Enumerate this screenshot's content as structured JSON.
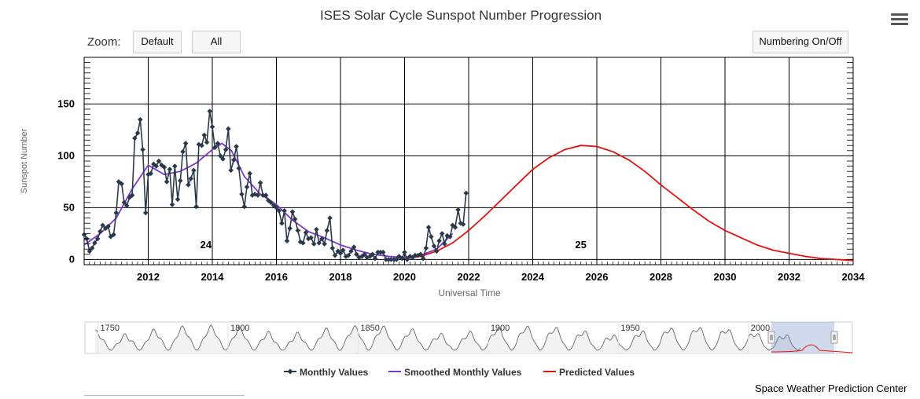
{
  "header": {
    "title": "ISES Solar Cycle Sunspot Number Progression",
    "zoom_label": "Zoom:",
    "zoom_default": "Default",
    "zoom_all": "All",
    "numbering_toggle": "Numbering On/Off",
    "menu_icon": "hamburger-menu-icon"
  },
  "footer": {
    "credit": "Space Weather Prediction Center"
  },
  "chart_data": {
    "type": "line",
    "ylabel": "Sunspot Number",
    "xlabel": "Universal Time",
    "xlim": [
      2010.0,
      2034.0
    ],
    "ylim": [
      -5,
      195
    ],
    "x_ticks": [
      "2012",
      "2014",
      "2016",
      "2018",
      "2020",
      "2022",
      "2024",
      "2026",
      "2028",
      "2030",
      "2032",
      "2034"
    ],
    "y_ticks": [
      "0",
      "50",
      "100",
      "150"
    ],
    "grid": true,
    "cycle_labels": [
      {
        "text": "24",
        "x": 2013.8,
        "y": 11
      },
      {
        "text": "25",
        "x": 2025.5,
        "y": 11
      }
    ],
    "legend": [
      "Monthly Values",
      "Smoothed Monthly Values",
      "Predicted Values"
    ],
    "legend_position": "bottom-center",
    "colors": {
      "monthly": "#2b3a4a",
      "smoothed": "#7b35d6",
      "predicted": "#e3130b"
    },
    "series": [
      {
        "name": "Monthly Values",
        "x": [
          2010.0,
          2010.08,
          2010.17,
          2010.25,
          2010.33,
          2010.42,
          2010.5,
          2010.58,
          2010.67,
          2010.75,
          2010.83,
          2010.92,
          2011.0,
          2011.08,
          2011.17,
          2011.25,
          2011.33,
          2011.42,
          2011.5,
          2011.58,
          2011.67,
          2011.75,
          2011.83,
          2011.92,
          2012.0,
          2012.08,
          2012.17,
          2012.25,
          2012.33,
          2012.42,
          2012.5,
          2012.58,
          2012.67,
          2012.75,
          2012.83,
          2012.92,
          2013.0,
          2013.08,
          2013.17,
          2013.25,
          2013.33,
          2013.42,
          2013.5,
          2013.58,
          2013.67,
          2013.75,
          2013.83,
          2013.92,
          2014.0,
          2014.08,
          2014.17,
          2014.25,
          2014.33,
          2014.42,
          2014.5,
          2014.58,
          2014.67,
          2014.75,
          2014.83,
          2014.92,
          2015.0,
          2015.08,
          2015.17,
          2015.25,
          2015.33,
          2015.42,
          2015.5,
          2015.58,
          2015.67,
          2015.75,
          2015.83,
          2015.92,
          2016.0,
          2016.08,
          2016.17,
          2016.25,
          2016.33,
          2016.42,
          2016.5,
          2016.58,
          2016.67,
          2016.75,
          2016.83,
          2016.92,
          2017.0,
          2017.08,
          2017.17,
          2017.25,
          2017.33,
          2017.42,
          2017.5,
          2017.58,
          2017.67,
          2017.75,
          2017.83,
          2017.92,
          2018.0,
          2018.08,
          2018.17,
          2018.25,
          2018.33,
          2018.42,
          2018.5,
          2018.58,
          2018.67,
          2018.75,
          2018.83,
          2018.92,
          2019.0,
          2019.08,
          2019.17,
          2019.25,
          2019.33,
          2019.42,
          2019.5,
          2019.58,
          2019.67,
          2019.75,
          2019.83,
          2019.92,
          2020.0,
          2020.08,
          2020.17,
          2020.25,
          2020.33,
          2020.42,
          2020.5,
          2020.58,
          2020.67,
          2020.75,
          2020.83,
          2020.92,
          2021.0,
          2021.08,
          2021.17,
          2021.25,
          2021.33,
          2021.42,
          2021.5,
          2021.58,
          2021.67,
          2021.75,
          2021.83,
          2021.92
        ],
        "values": [
          24,
          20,
          8,
          11,
          16,
          20,
          27,
          33,
          30,
          32,
          22,
          24,
          45,
          75,
          73,
          55,
          52,
          60,
          62,
          117,
          122,
          135,
          106,
          45,
          82,
          83,
          92,
          90,
          95,
          91,
          89,
          75,
          87,
          53,
          90,
          58,
          76,
          104,
          112,
          72,
          78,
          86,
          51,
          111,
          110,
          120,
          113,
          143,
          128,
          108,
          112,
          100,
          97,
          106,
          126,
          86,
          96,
          109,
          88,
          63,
          51,
          70,
          83,
          62,
          63,
          62,
          74,
          62,
          62,
          57,
          55,
          52,
          50,
          47,
          35,
          47,
          18,
          30,
          46,
          39,
          28,
          17,
          16,
          26,
          20,
          21,
          15,
          29,
          16,
          20,
          15,
          28,
          40,
          11,
          4,
          8,
          6,
          9,
          3,
          4,
          8,
          12,
          5,
          2,
          3,
          5,
          2,
          3,
          5,
          1,
          7,
          7,
          7,
          0,
          0,
          0,
          0,
          0,
          3,
          1,
          7,
          0,
          3,
          2,
          4,
          4,
          5,
          1,
          11,
          31,
          22,
          13,
          8,
          18,
          25,
          15,
          23,
          22,
          33,
          31,
          48,
          35,
          34,
          64
        ]
      },
      {
        "name": "Smoothed Monthly Values",
        "x": [
          2010.0,
          2010.5,
          2011.0,
          2011.5,
          2012.0,
          2012.5,
          2013.0,
          2013.5,
          2014.0,
          2014.3,
          2014.6,
          2015.0,
          2015.5,
          2016.0,
          2016.5,
          2017.0,
          2017.5,
          2018.0,
          2018.5,
          2019.0,
          2019.5,
          2019.95,
          2020.5,
          2021.0,
          2021.5
        ],
        "values": [
          14,
          25,
          40,
          68,
          91,
          82,
          85,
          93,
          106,
          112,
          105,
          80,
          63,
          53,
          38,
          27,
          21,
          14,
          9,
          5,
          3,
          2,
          4,
          10,
          25
        ]
      },
      {
        "name": "Predicted Values",
        "x": [
          2020.0,
          2020.5,
          2021.0,
          2021.5,
          2022.0,
          2022.5,
          2023.0,
          2023.5,
          2024.0,
          2024.5,
          2025.0,
          2025.5,
          2026.0,
          2026.5,
          2027.0,
          2027.5,
          2028.0,
          2028.5,
          2029.0,
          2029.5,
          2030.0,
          2030.5,
          2031.0,
          2031.5,
          2032.0,
          2032.5,
          2033.0,
          2033.5,
          2034.0
        ],
        "values": [
          1,
          3,
          8,
          16,
          28,
          42,
          57,
          72,
          87,
          98,
          106,
          110,
          109,
          104,
          96,
          85,
          72,
          60,
          48,
          37,
          28,
          21,
          14,
          9,
          6,
          3,
          1,
          0,
          -1
        ]
      }
    ]
  },
  "navigator": {
    "labels": [
      "1750",
      "1800",
      "1850",
      "1900",
      "1950",
      "2000"
    ]
  }
}
